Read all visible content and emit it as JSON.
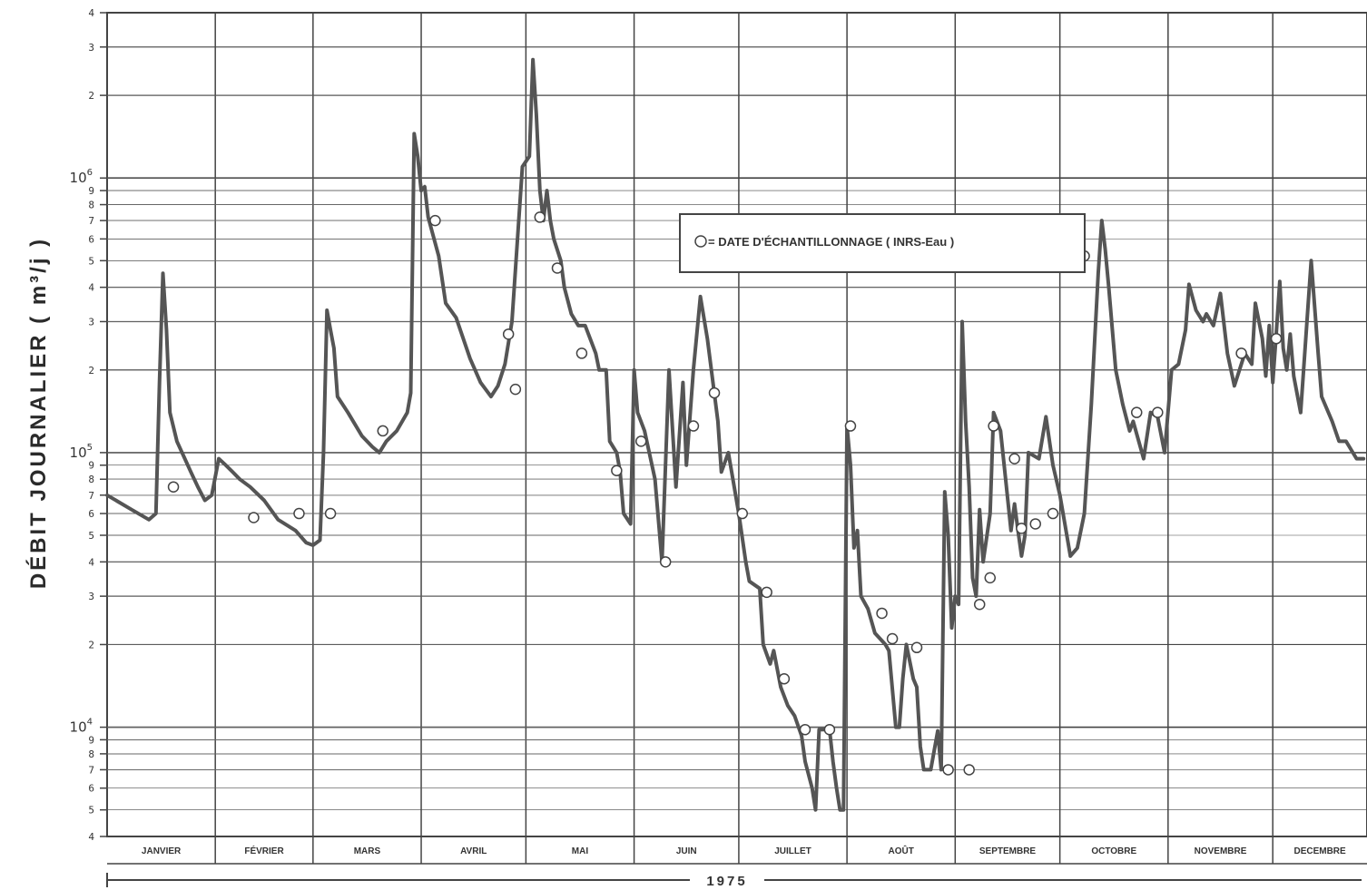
{
  "chart_data": {
    "type": "line",
    "title": "",
    "ylabel": "DÉBIT JOURNALIER ( m³/j )",
    "xlabel": "1975",
    "y_scale": "log",
    "ylim": [
      4000,
      4000000
    ],
    "y_decade_ticks": [
      {
        "base": "10",
        "exp": "4",
        "value": 10000
      },
      {
        "base": "10",
        "exp": "5",
        "value": 100000
      },
      {
        "base": "10",
        "exp": "6",
        "value": 1000000
      }
    ],
    "y_minor_tick_labels": [
      "4",
      "5",
      "6",
      "7",
      "8",
      "9",
      "2",
      "3"
    ],
    "months": [
      "JANVIER",
      "FÉVRIER",
      "MARS",
      "AVRIL",
      "MAI",
      "JUIN",
      "JUILLET",
      "AOÛT",
      "SEPTEMBRE",
      "OCTOBRE",
      "NOVEMBRE",
      "DECEMBRE"
    ],
    "legend": {
      "marker": "O",
      "text": "= DATE D'ÉCHANTILLONNAGE ( INRS-Eau )",
      "position": "center-top"
    },
    "grid": true,
    "series": [
      {
        "values": [
          [
            1,
            70000
          ],
          [
            8,
            62000
          ],
          [
            13,
            57000
          ],
          [
            15,
            60000
          ],
          [
            16,
            180000
          ],
          [
            17,
            450000
          ],
          [
            18,
            280000
          ],
          [
            19,
            140000
          ],
          [
            21,
            110000
          ],
          [
            25,
            85000
          ],
          [
            27,
            75000
          ],
          [
            29,
            67000
          ],
          [
            31,
            70000
          ],
          [
            33,
            95000
          ],
          [
            35,
            90000
          ],
          [
            37,
            85000
          ],
          [
            39,
            80000
          ],
          [
            42,
            75000
          ],
          [
            46,
            67000
          ],
          [
            50,
            57000
          ],
          [
            55,
            52000
          ],
          [
            58,
            47000
          ],
          [
            60,
            46000
          ],
          [
            62,
            48000
          ],
          [
            63,
            100000
          ],
          [
            64,
            330000
          ],
          [
            65,
            280000
          ],
          [
            66,
            240000
          ],
          [
            67,
            160000
          ],
          [
            70,
            140000
          ],
          [
            74,
            115000
          ],
          [
            77,
            105000
          ],
          [
            79,
            100000
          ],
          [
            81,
            110000
          ],
          [
            84,
            120000
          ],
          [
            87,
            140000
          ],
          [
            88,
            165000
          ],
          [
            89,
            1450000
          ],
          [
            90,
            1200000
          ],
          [
            91,
            900000
          ],
          [
            92,
            930000
          ],
          [
            93,
            720000
          ],
          [
            96,
            520000
          ],
          [
            98,
            350000
          ],
          [
            101,
            310000
          ],
          [
            105,
            220000
          ],
          [
            108,
            180000
          ],
          [
            111,
            160000
          ],
          [
            113,
            175000
          ],
          [
            115,
            210000
          ],
          [
            117,
            300000
          ],
          [
            120,
            1100000
          ],
          [
            122,
            1200000
          ],
          [
            123,
            2700000
          ],
          [
            124,
            1700000
          ],
          [
            125,
            900000
          ],
          [
            126,
            700000
          ],
          [
            127,
            900000
          ],
          [
            128,
            700000
          ],
          [
            129,
            600000
          ],
          [
            131,
            500000
          ],
          [
            132,
            400000
          ],
          [
            134,
            320000
          ],
          [
            136,
            290000
          ],
          [
            138,
            290000
          ],
          [
            141,
            230000
          ],
          [
            142,
            200000
          ],
          [
            144,
            200000
          ],
          [
            145,
            110000
          ],
          [
            147,
            100000
          ],
          [
            148,
            85000
          ],
          [
            149,
            60000
          ],
          [
            151,
            55000
          ],
          [
            152,
            200000
          ],
          [
            153,
            140000
          ],
          [
            155,
            120000
          ],
          [
            158,
            80000
          ],
          [
            160,
            40000
          ],
          [
            162,
            200000
          ],
          [
            164,
            75000
          ],
          [
            166,
            180000
          ],
          [
            167,
            90000
          ],
          [
            169,
            200000
          ],
          [
            171,
            370000
          ],
          [
            173,
            260000
          ],
          [
            176,
            130000
          ],
          [
            177,
            85000
          ],
          [
            179,
            100000
          ],
          [
            182,
            60000
          ],
          [
            184,
            40000
          ],
          [
            185,
            34000
          ],
          [
            188,
            32000
          ],
          [
            189,
            20000
          ],
          [
            191,
            17000
          ],
          [
            192,
            19000
          ],
          [
            194,
            14000
          ],
          [
            196,
            12000
          ],
          [
            198,
            11000
          ],
          [
            200,
            9300
          ],
          [
            201,
            7500
          ],
          [
            203,
            6000
          ],
          [
            204,
            5000
          ],
          [
            205,
            9800
          ],
          [
            206,
            9800
          ],
          [
            208,
            9800
          ],
          [
            209,
            7500
          ],
          [
            210,
            6000
          ],
          [
            211,
            5000
          ],
          [
            212,
            5000
          ],
          [
            213,
            125000
          ],
          [
            214,
            90000
          ],
          [
            215,
            45000
          ],
          [
            216,
            52000
          ],
          [
            217,
            30000
          ],
          [
            219,
            27000
          ],
          [
            221,
            22000
          ],
          [
            224,
            20000
          ],
          [
            225,
            19000
          ],
          [
            227,
            10000
          ],
          [
            228,
            10000
          ],
          [
            229,
            15000
          ],
          [
            230,
            20000
          ],
          [
            232,
            15000
          ],
          [
            233,
            14000
          ],
          [
            234,
            8500
          ],
          [
            235,
            7000
          ],
          [
            237,
            7000
          ],
          [
            239,
            9700
          ],
          [
            240,
            7000
          ],
          [
            241,
            72000
          ],
          [
            242,
            50000
          ],
          [
            243,
            23000
          ],
          [
            244,
            30000
          ],
          [
            245,
            28000
          ],
          [
            246,
            300000
          ],
          [
            247,
            130000
          ],
          [
            248,
            75000
          ],
          [
            249,
            35000
          ],
          [
            250,
            30000
          ],
          [
            251,
            62000
          ],
          [
            252,
            40000
          ],
          [
            254,
            60000
          ],
          [
            255,
            140000
          ],
          [
            257,
            120000
          ],
          [
            260,
            52000
          ],
          [
            261,
            65000
          ],
          [
            262,
            52000
          ],
          [
            263,
            42000
          ],
          [
            264,
            50000
          ],
          [
            265,
            100000
          ],
          [
            268,
            95000
          ],
          [
            270,
            135000
          ],
          [
            272,
            90000
          ],
          [
            274,
            70000
          ],
          [
            276,
            50000
          ],
          [
            277,
            42000
          ],
          [
            279,
            45000
          ],
          [
            281,
            60000
          ],
          [
            283,
            150000
          ],
          [
            285,
            450000
          ],
          [
            286,
            700000
          ],
          [
            287,
            550000
          ],
          [
            288,
            400000
          ],
          [
            290,
            200000
          ],
          [
            292,
            150000
          ],
          [
            294,
            120000
          ],
          [
            295,
            130000
          ],
          [
            298,
            95000
          ],
          [
            300,
            140000
          ],
          [
            302,
            135000
          ],
          [
            304,
            100000
          ],
          [
            306,
            200000
          ],
          [
            308,
            210000
          ],
          [
            310,
            280000
          ],
          [
            311,
            410000
          ],
          [
            313,
            330000
          ],
          [
            315,
            300000
          ],
          [
            316,
            320000
          ],
          [
            318,
            290000
          ],
          [
            320,
            380000
          ],
          [
            322,
            230000
          ],
          [
            324,
            175000
          ],
          [
            327,
            230000
          ],
          [
            329,
            210000
          ],
          [
            330,
            350000
          ],
          [
            332,
            260000
          ],
          [
            333,
            190000
          ],
          [
            334,
            290000
          ],
          [
            335,
            180000
          ],
          [
            336,
            270000
          ],
          [
            337,
            420000
          ],
          [
            338,
            240000
          ],
          [
            339,
            200000
          ],
          [
            340,
            270000
          ],
          [
            341,
            190000
          ],
          [
            343,
            140000
          ],
          [
            346,
            500000
          ],
          [
            348,
            230000
          ],
          [
            349,
            160000
          ],
          [
            352,
            130000
          ],
          [
            354,
            110000
          ],
          [
            356,
            110000
          ],
          [
            359,
            95000
          ],
          [
            361,
            95000
          ]
        ]
      }
    ],
    "markers": [
      [
        20,
        75000
      ],
      [
        43,
        58000
      ],
      [
        56,
        60000
      ],
      [
        65,
        60000
      ],
      [
        80,
        120000
      ],
      [
        95,
        700000
      ],
      [
        116,
        270000
      ],
      [
        118,
        170000
      ],
      [
        125,
        720000
      ],
      [
        130,
        470000
      ],
      [
        137,
        230000
      ],
      [
        147,
        86000
      ],
      [
        154,
        110000
      ],
      [
        161,
        40000
      ],
      [
        169,
        125000
      ],
      [
        175,
        165000
      ],
      [
        183,
        60000
      ],
      [
        190,
        31000
      ],
      [
        195,
        15000
      ],
      [
        201,
        9800
      ],
      [
        208,
        9800
      ],
      [
        214,
        125000
      ],
      [
        223,
        26000
      ],
      [
        226,
        21000
      ],
      [
        233,
        19500
      ],
      [
        242,
        7000
      ],
      [
        248,
        7000
      ],
      [
        251,
        28000
      ],
      [
        254,
        35000
      ],
      [
        255,
        125000
      ],
      [
        261,
        95000
      ],
      [
        263,
        53000
      ],
      [
        267,
        55000
      ],
      [
        272,
        60000
      ],
      [
        281,
        520000
      ],
      [
        296,
        140000
      ],
      [
        302,
        140000
      ],
      [
        326,
        230000
      ],
      [
        336,
        260000
      ]
    ]
  }
}
